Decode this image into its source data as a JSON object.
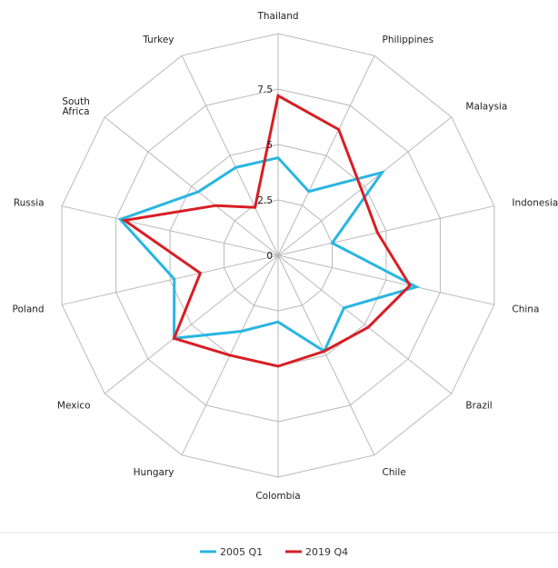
{
  "chart_data": {
    "type": "radar",
    "categories": [
      "Thailand",
      "Philippines",
      "Malaysia",
      "Indonesia",
      "China",
      "Brazil",
      "Chile",
      "Colombia",
      "Hungary",
      "Mexico",
      "Poland",
      "Russia",
      "South Africa",
      "Turkey"
    ],
    "category_lines": {
      "South Africa": [
        "South",
        "Africa"
      ]
    },
    "series": [
      {
        "name": "2005 Q1",
        "color": "#29b5e2",
        "values": [
          4.4,
          3.2,
          6.0,
          2.5,
          6.4,
          3.8,
          4.8,
          3.0,
          3.8,
          6.0,
          4.8,
          7.3,
          4.6,
          4.4
        ]
      },
      {
        "name": "2019 Q4",
        "color": "#d71e24",
        "values": [
          7.2,
          6.3,
          4.8,
          4.6,
          6.1,
          5.2,
          4.8,
          5.0,
          5.0,
          6.0,
          3.6,
          7.1,
          3.6,
          2.4
        ]
      }
    ],
    "ylim": [
      0,
      10
    ],
    "tick_values": [
      0,
      2.5,
      5,
      7.5
    ],
    "tick_labels": [
      "0",
      "2.5",
      "5",
      "7.5"
    ],
    "grid": true,
    "legend_position": "bottom-center"
  }
}
